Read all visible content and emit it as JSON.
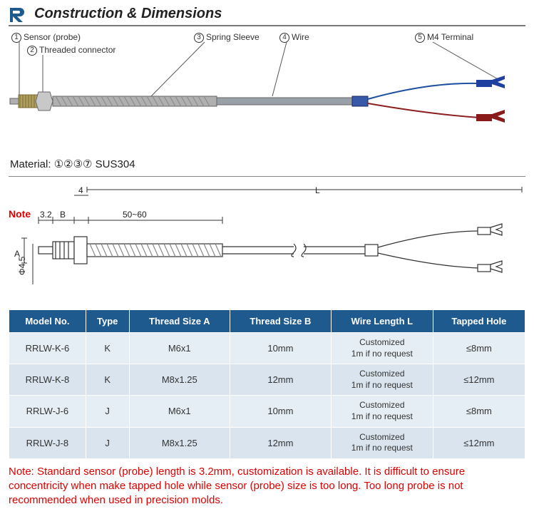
{
  "header": {
    "title": "Construction & Dimensions"
  },
  "callouts": {
    "c1": "Sensor (probe)",
    "c2": "Threaded connector",
    "c3": "Spring Sleeve",
    "c4": "Wire",
    "c5": "M4 Terminal"
  },
  "material": {
    "label": "Material:",
    "codes": "①②③⑦",
    "value": "SUS304"
  },
  "dims": {
    "note": "Note",
    "d32": "3.2",
    "dB": "B",
    "d4": "4",
    "d5060": "50~60",
    "dL": "L",
    "dA": "A",
    "dPhi": "Φ4.5"
  },
  "table": {
    "headers": [
      "Model No.",
      "Type",
      "Thread Size A",
      "Thread Size B",
      "Wire Length L",
      "Tapped Hole"
    ],
    "rows": [
      [
        "RRLW-K-6",
        "K",
        "M6x1",
        "10mm",
        "Customized\n1m if no request",
        "≤8mm"
      ],
      [
        "RRLW-K-8",
        "K",
        "M8x1.25",
        "12mm",
        "Customized\n1m if no request",
        "≤12mm"
      ],
      [
        "RRLW-J-6",
        "J",
        "M6x1",
        "10mm",
        "Customized\n1m if no request",
        "≤8mm"
      ],
      [
        "RRLW-J-8",
        "J",
        "M8x1.25",
        "12mm",
        "Customized\n1m if no request",
        "≤12mm"
      ]
    ]
  },
  "note": "Note: Standard sensor (probe) length is 3.2mm, customization is available. It is difficult to ensure concentricity when make tapped hole while sensor (probe) size is too long. Too long probe is not recommended when used in precision molds.",
  "colors": {
    "header_border": "#7a7a7a",
    "th_bg": "#1f5a8e",
    "td_bg1": "#e6eef5",
    "td_bg2": "#d9e4ef",
    "note_red": "#d00",
    "wire_red": "#8b2020",
    "wire_blue": "#2050a0",
    "sleeve": "#3858a8",
    "metal": "#b0b0b0",
    "metal_dark": "#888",
    "term_blue": "#2040a0",
    "term_red": "#8b1a1a"
  }
}
